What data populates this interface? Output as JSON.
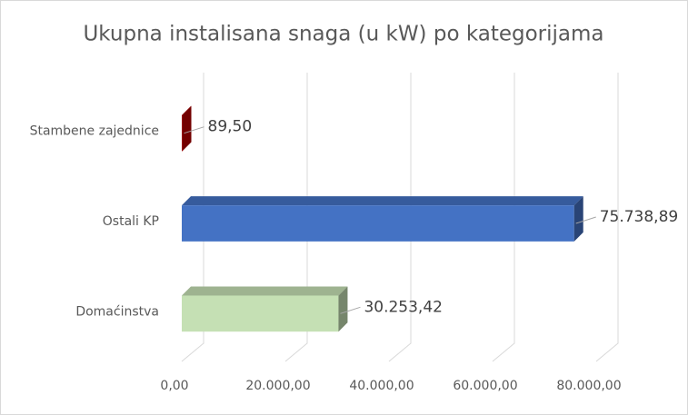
{
  "chart_data": {
    "type": "bar3d_horizontal",
    "title": "Ukupna instalisana snaga (u kW) po kategorijama",
    "categories": [
      "Stambene zajednice",
      "Ostali KP",
      "Domaćinstva"
    ],
    "values": [
      89.5,
      75738.89,
      30253.42
    ],
    "value_labels": [
      "89,50",
      "75.738,89",
      "30.253,42"
    ],
    "colors": [
      "#c00000",
      "#4472c4",
      "#c5e0b4"
    ],
    "xlim": [
      0,
      80000
    ],
    "xticks": [
      {
        "value": 0,
        "label": "0,00"
      },
      {
        "value": 20000,
        "label": "20.000,00"
      },
      {
        "value": 40000,
        "label": "40.000,00"
      },
      {
        "value": 60000,
        "label": "60.000,00"
      },
      {
        "value": 80000,
        "label": "80.000,00"
      }
    ],
    "grid": true
  }
}
